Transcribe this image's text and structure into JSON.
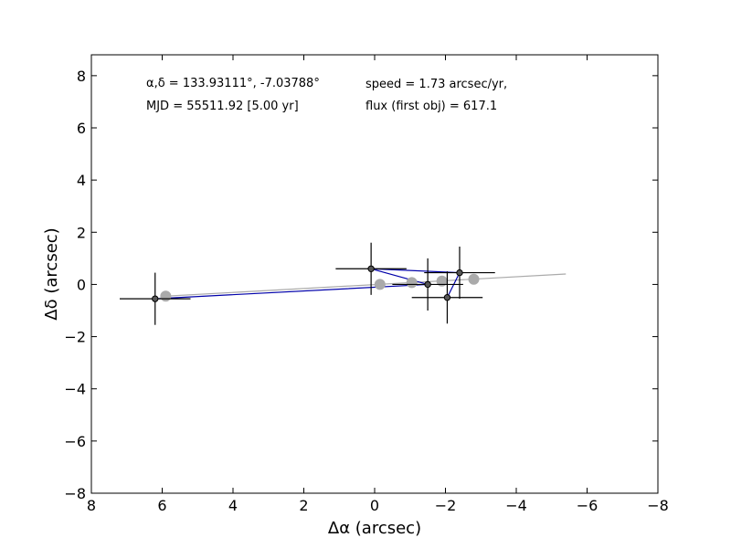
{
  "chart_data": {
    "type": "scatter",
    "title": "",
    "xlabel": "Δα (arcsec)",
    "ylabel": "Δδ (arcsec)",
    "xlim": [
      8,
      -8
    ],
    "ylim": [
      -8,
      8.8
    ],
    "x_axis_inverted": true,
    "xticks": [
      8,
      6,
      4,
      2,
      0,
      -2,
      -4,
      -6,
      -8
    ],
    "yticks": [
      8,
      6,
      4,
      2,
      0,
      -2,
      -4,
      -6,
      -8
    ],
    "xtick_labels": [
      "8",
      "6",
      "4",
      "2",
      "0",
      "−2",
      "−4",
      "−6",
      "−8"
    ],
    "ytick_labels": [
      "8",
      "6",
      "4",
      "2",
      "0",
      "−2",
      "−4",
      "−6",
      "−8"
    ],
    "grid": false,
    "legend": "none",
    "annotations": {
      "radec": "α,δ = 133.93111°, -7.03788°",
      "mjd": "MJD = 55511.92 [5.00 yr]",
      "speed": "speed = 1.73 arcsec/yr,",
      "flux": "flux (first obj) = 617.1"
    },
    "colors": {
      "observed_line": "#0000aa",
      "observed_marker": "#555555",
      "errorbar": "#000000",
      "model_line": "#aaaaaa",
      "model_marker": "#aaaaaa"
    },
    "observed": [
      {
        "x": 6.2,
        "y": -0.55,
        "xerr": 1.0,
        "yerr": 1.0
      },
      {
        "x": -1.5,
        "y": 0.0,
        "xerr": 1.0,
        "yerr": 1.0
      },
      {
        "x": 0.1,
        "y": 0.6,
        "xerr": 1.0,
        "yerr": 1.0
      },
      {
        "x": -2.4,
        "y": 0.45,
        "xerr": 1.0,
        "yerr": 1.0
      },
      {
        "x": -2.05,
        "y": -0.5,
        "xerr": 1.0,
        "yerr": 1.0
      }
    ],
    "model_points": [
      {
        "x": 5.9,
        "y": -0.45
      },
      {
        "x": -0.15,
        "y": 0.0
      },
      {
        "x": -1.05,
        "y": 0.07
      },
      {
        "x": -1.9,
        "y": 0.13
      },
      {
        "x": -2.8,
        "y": 0.2
      }
    ],
    "model_line": [
      {
        "x": 5.9,
        "y": -0.45
      },
      {
        "x": -5.4,
        "y": 0.4
      }
    ]
  }
}
